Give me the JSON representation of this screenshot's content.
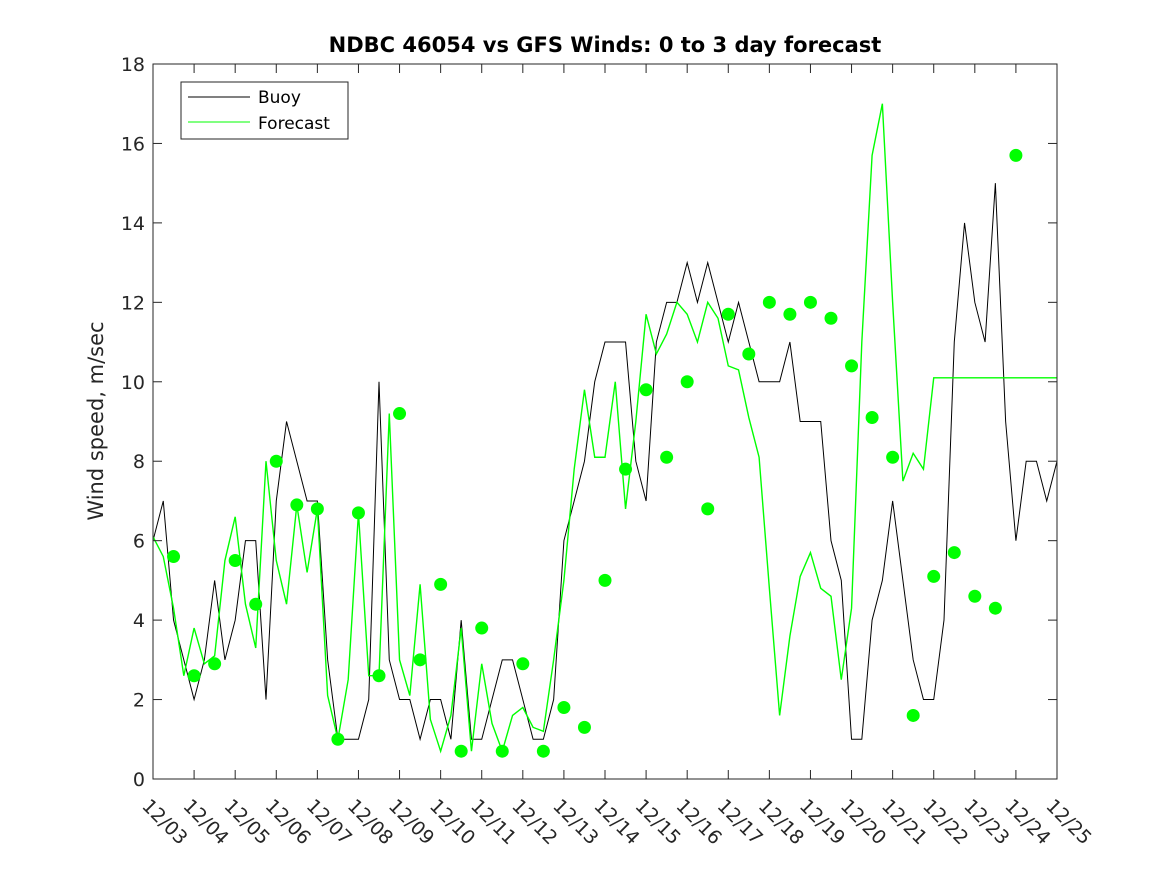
{
  "chart_data": {
    "type": "line",
    "title": "NDBC 46054 vs GFS Winds: 0 to 3 day forecast",
    "xlabel": "",
    "ylabel": "Wind speed, m/sec",
    "xlim": [
      "12/03",
      "12/25"
    ],
    "ylim": [
      0,
      18
    ],
    "x_ticks": [
      "12/03",
      "12/04",
      "12/05",
      "12/06",
      "12/07",
      "12/08",
      "12/09",
      "12/10",
      "12/11",
      "12/12",
      "12/13",
      "12/14",
      "12/15",
      "12/16",
      "12/17",
      "12/18",
      "12/19",
      "12/20",
      "12/21",
      "12/22",
      "12/23",
      "12/24",
      "12/25"
    ],
    "y_ticks": [
      0,
      2,
      4,
      6,
      8,
      10,
      12,
      14,
      16,
      18
    ],
    "grid": false,
    "legend": {
      "placement": "top-left",
      "entries": [
        "Buoy",
        "Forecast"
      ]
    },
    "colors": {
      "buoy": "#000000",
      "forecast": "#00ff00",
      "axes": "#262626"
    },
    "series": [
      {
        "name": "Buoy",
        "x": [
          0.0,
          0.25,
          0.5,
          0.75,
          1.0,
          1.25,
          1.5,
          1.75,
          2.0,
          2.25,
          2.5,
          2.75,
          3.0,
          3.25,
          3.5,
          3.75,
          4.0,
          4.25,
          4.5,
          4.75,
          5.0,
          5.25,
          5.5,
          5.75,
          6.0,
          6.25,
          6.5,
          6.75,
          7.0,
          7.25,
          7.5,
          7.75,
          8.0,
          8.25,
          8.5,
          8.75,
          9.0,
          9.25,
          9.5,
          9.75,
          10.0,
          10.25,
          10.5,
          10.75,
          11.0,
          11.25,
          11.5,
          11.75,
          12.0,
          12.25,
          12.5,
          12.75,
          13.0,
          13.25,
          13.5,
          13.75,
          14.0,
          14.25,
          14.5,
          14.75,
          15.0,
          15.25,
          15.5,
          15.75,
          16.0,
          16.25,
          16.5,
          16.75,
          17.0,
          17.25,
          17.5,
          17.75,
          18.0,
          18.25,
          18.5,
          18.75,
          19.0,
          19.25,
          19.5,
          19.75,
          20.0,
          20.25,
          20.5,
          20.75,
          21.0,
          21.25,
          21.5,
          21.75,
          22.0
        ],
        "values": [
          6,
          7,
          4,
          3,
          2,
          3,
          5,
          3,
          4,
          6,
          6,
          2,
          7,
          9,
          8,
          7,
          7,
          3,
          1,
          1,
          1,
          2,
          10,
          3,
          2,
          2,
          1,
          2,
          2,
          1,
          4,
          1,
          1,
          2,
          3,
          3,
          2,
          1,
          1,
          2,
          6,
          7,
          8,
          10,
          11,
          11,
          11,
          8,
          7,
          11,
          12,
          12,
          13,
          12,
          13,
          12,
          11,
          12,
          11,
          10,
          10,
          10,
          11,
          9,
          9,
          9,
          6,
          5,
          1,
          1,
          4,
          5,
          7,
          5,
          3,
          2,
          2,
          4,
          11,
          14,
          12,
          11,
          15,
          9,
          6,
          8,
          8,
          7,
          8
        ]
      },
      {
        "name": "Forecast",
        "x": [
          0.0,
          0.25,
          0.5,
          0.75,
          1.0,
          1.25,
          1.5,
          1.75,
          2.0,
          2.25,
          2.5,
          2.75,
          3.0,
          3.25,
          3.5,
          3.75,
          4.0,
          4.25,
          4.5,
          4.75,
          5.0,
          5.25,
          5.5,
          5.75,
          6.0,
          6.25,
          6.5,
          6.75,
          7.0,
          7.25,
          7.5,
          7.75,
          8.0,
          8.25,
          8.5,
          8.75,
          9.0,
          9.25,
          9.5,
          9.75,
          10.0,
          10.25,
          10.5,
          10.75,
          11.0,
          11.25,
          11.5,
          11.75,
          12.0,
          12.25,
          12.5,
          12.75,
          13.0,
          13.25,
          13.5,
          13.75,
          14.0,
          14.25,
          14.5,
          14.75,
          15.0,
          15.25,
          15.5,
          15.75,
          16.0,
          16.25,
          16.5,
          16.75,
          17.0,
          17.25,
          17.5,
          17.75,
          18.0,
          18.25,
          18.5,
          18.75,
          19.0,
          19.25,
          19.5,
          19.75,
          20.0,
          20.25,
          20.5,
          20.75,
          21.0,
          21.25,
          21.5,
          21.75,
          22.0
        ],
        "values": [
          6.1,
          5.6,
          4.3,
          2.6,
          3.8,
          2.9,
          3.1,
          5.5,
          6.6,
          4.4,
          3.3,
          8.0,
          5.5,
          4.4,
          6.9,
          5.2,
          6.8,
          2.1,
          1.0,
          2.5,
          6.7,
          2.6,
          2.6,
          9.2,
          3.0,
          2.1,
          4.9,
          1.5,
          0.7,
          1.6,
          3.8,
          0.7,
          2.9,
          1.4,
          0.7,
          1.6,
          1.8,
          1.3,
          1.2,
          3.0,
          5.0,
          7.8,
          9.8,
          8.1,
          8.1,
          10.0,
          6.8,
          9.0,
          11.7,
          10.7,
          11.2,
          12.0,
          11.7,
          11.0,
          12.0,
          11.6,
          10.4,
          10.3,
          9.1,
          8.1,
          4.8,
          1.6,
          3.6,
          5.1,
          5.7,
          4.8,
          4.6,
          2.5,
          4.3,
          11.0,
          15.7,
          17.0,
          12.0,
          7.5,
          8.2,
          7.8,
          10.1,
          10.1,
          10.1,
          10.1,
          10.1,
          10.1,
          10.1,
          10.1,
          10.1,
          10.1,
          10.1,
          10.1,
          10.1
        ]
      }
    ],
    "markers": {
      "color": "#00ff00",
      "x": [
        0.5,
        1.0,
        1.5,
        2.0,
        2.5,
        3.0,
        3.5,
        4.0,
        4.5,
        5.0,
        5.5,
        6.0,
        6.5,
        7.0,
        7.5,
        8.0,
        8.5,
        9.0,
        9.5,
        10.0,
        10.5,
        11.0,
        11.5,
        12.0,
        12.5,
        13.0,
        13.5,
        14.0,
        14.5,
        15.0,
        15.5,
        16.0,
        16.5,
        17.0,
        17.5,
        18.0,
        18.5,
        19.0,
        19.5,
        20.0,
        20.5,
        21.0
      ],
      "values": [
        5.6,
        2.6,
        2.9,
        5.5,
        4.4,
        8.0,
        6.9,
        6.8,
        1.0,
        6.7,
        2.6,
        9.2,
        3.0,
        4.9,
        0.7,
        3.8,
        0.7,
        2.9,
        0.7,
        1.8,
        1.3,
        5.0,
        7.8,
        9.8,
        8.1,
        10.0,
        6.8,
        11.7,
        10.7,
        12.0,
        11.7,
        12.0,
        11.6,
        10.4,
        9.1,
        8.1,
        1.6,
        5.1,
        5.7,
        4.6,
        4.3,
        15.7
      ]
    }
  }
}
